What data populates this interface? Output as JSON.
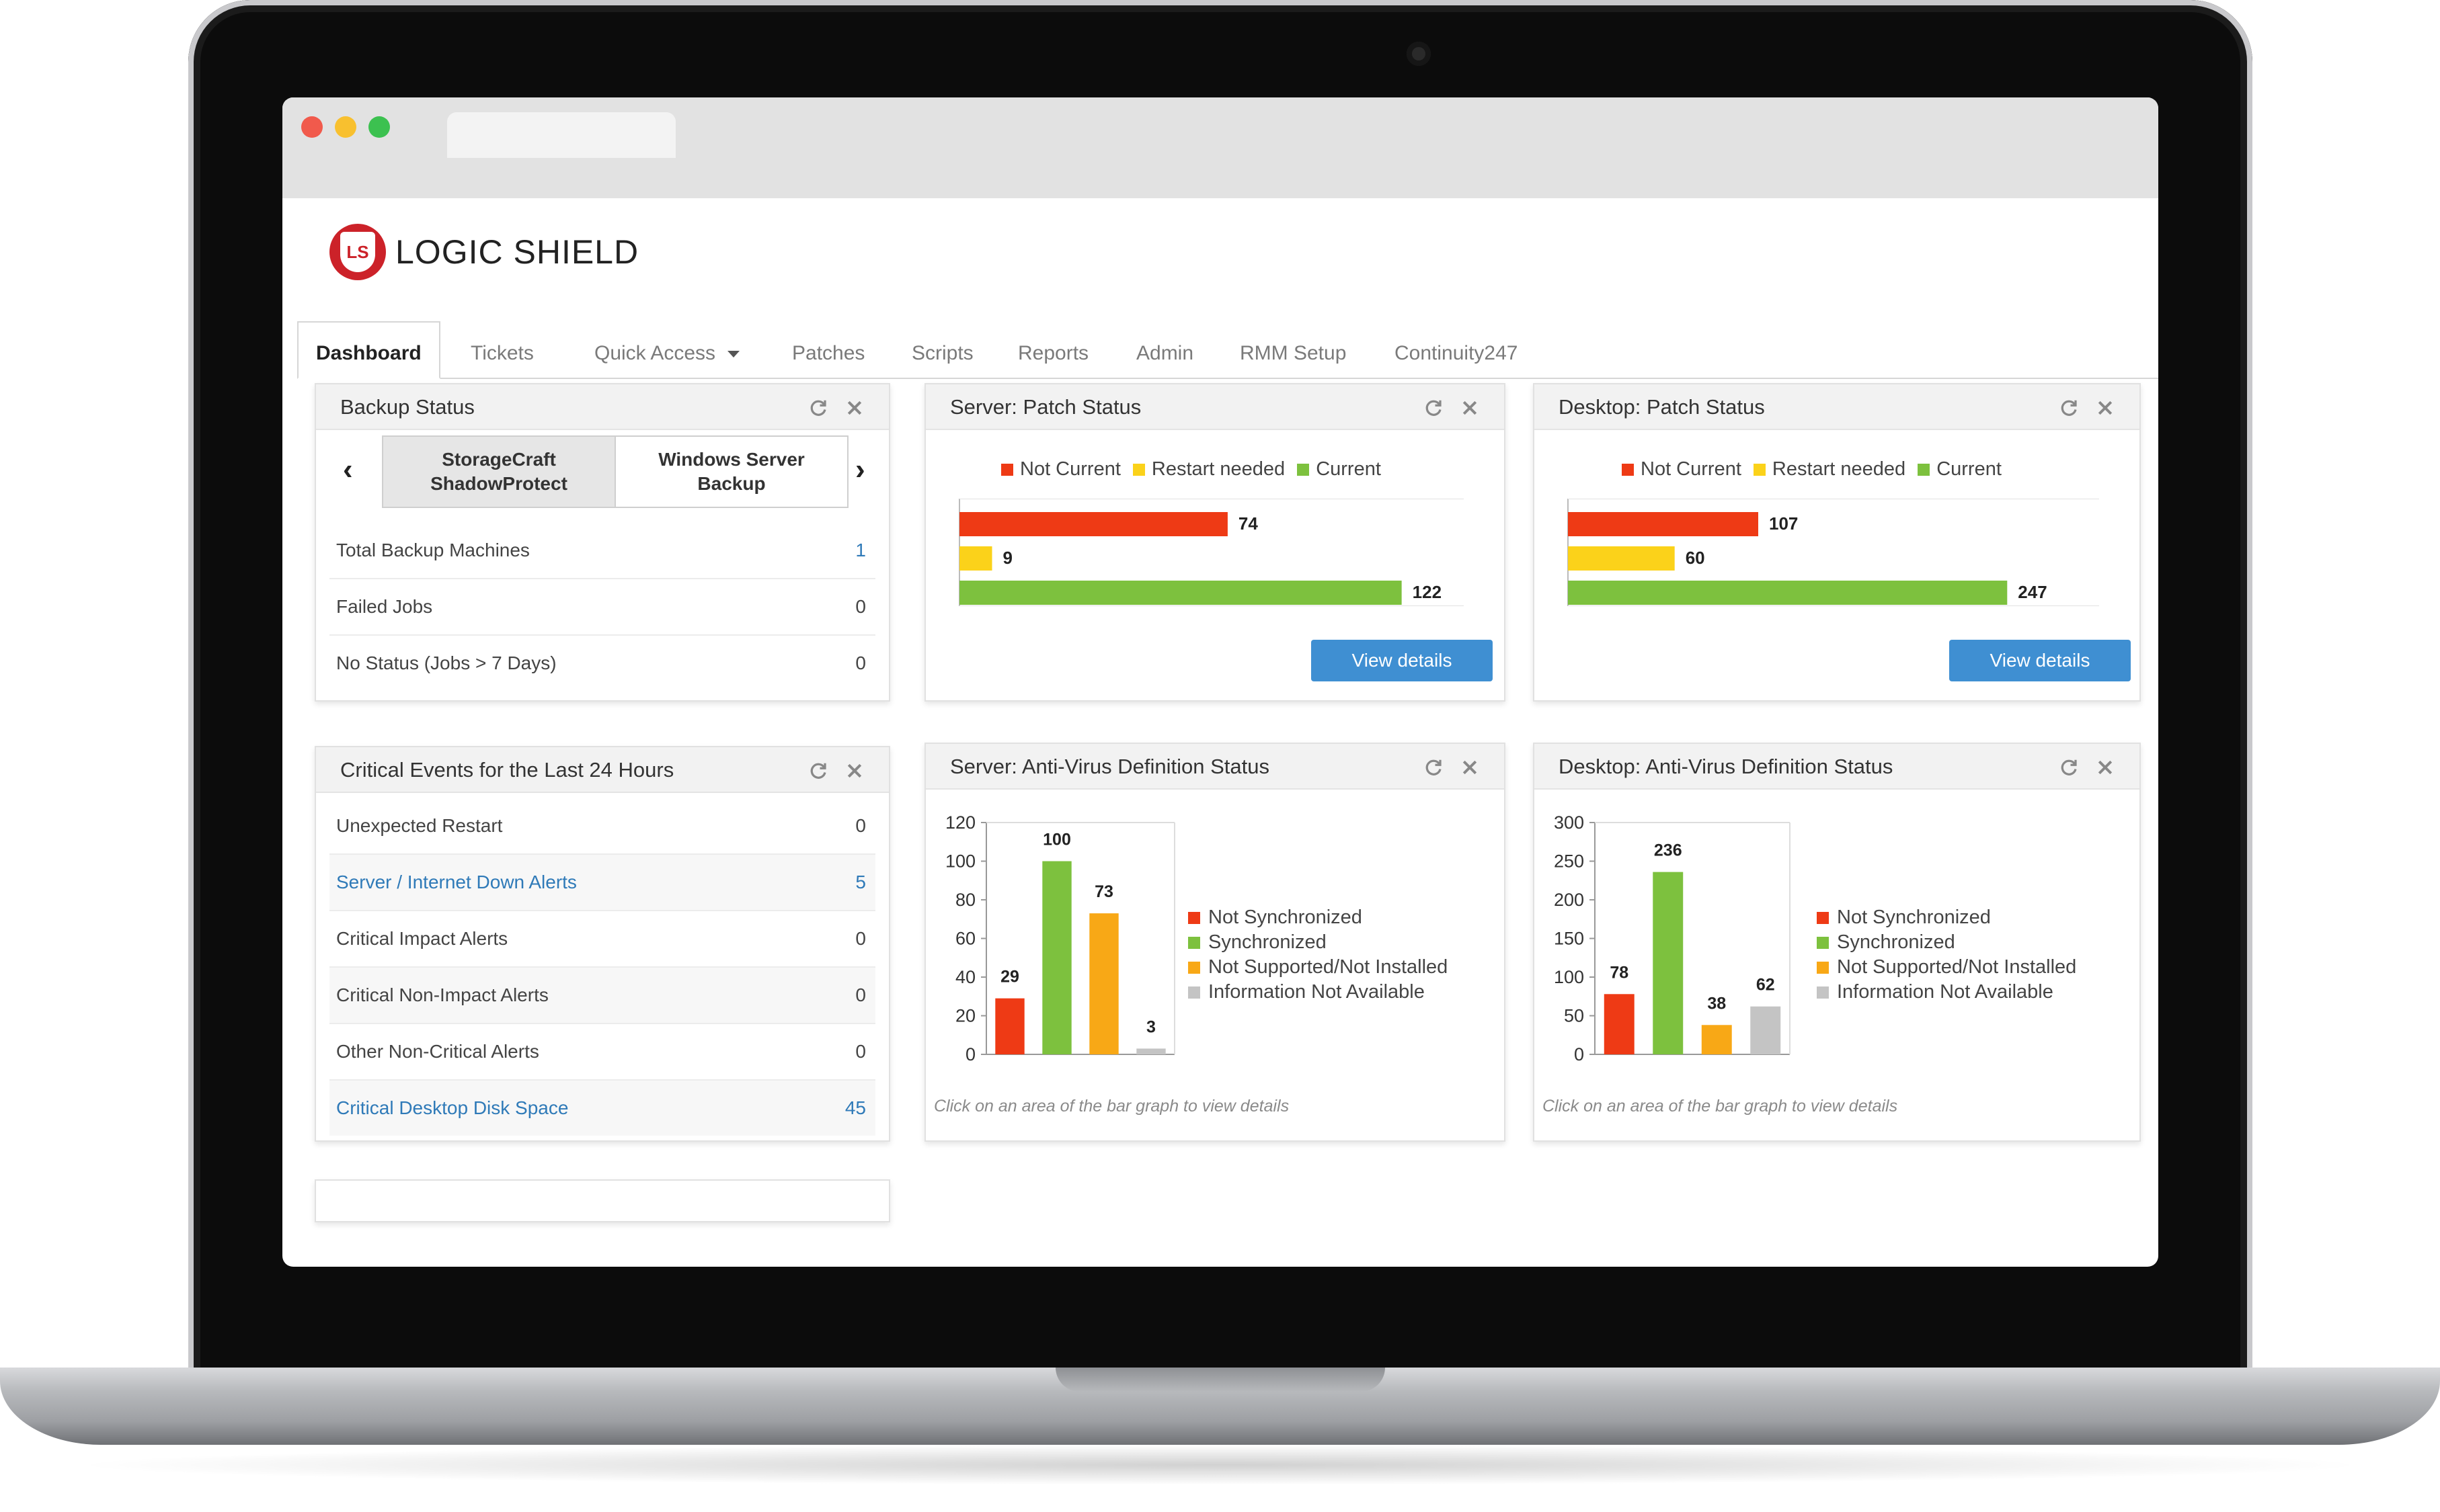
{
  "app": {
    "logo_text": "LOGIC SHIELD",
    "logo_mark": "LS"
  },
  "nav": {
    "tabs": [
      {
        "label": "Dashboard"
      },
      {
        "label": "Tickets"
      },
      {
        "label": "Quick Access"
      },
      {
        "label": "Patches"
      },
      {
        "label": "Scripts"
      },
      {
        "label": "Reports"
      },
      {
        "label": "Admin"
      },
      {
        "label": "RMM Setup"
      },
      {
        "label": "Continuity247"
      }
    ]
  },
  "backup": {
    "title": "Backup Status",
    "segments": [
      "StorageCraft\nShadowProtect",
      "Windows Server\nBackup"
    ],
    "rows": [
      {
        "label": "Total Backup Machines",
        "value": "1"
      },
      {
        "label": "Failed Jobs",
        "value": "0"
      },
      {
        "label": "No Status (Jobs > 7 Days)",
        "value": "0"
      }
    ]
  },
  "critical": {
    "title": "Critical Events for the Last 24 Hours",
    "rows": [
      {
        "label": "Unexpected Restart",
        "value": "0"
      },
      {
        "label": "Server / Internet Down Alerts",
        "value": "5"
      },
      {
        "label": "Critical Impact Alerts",
        "value": "0"
      },
      {
        "label": "Critical Non-Impact Alerts",
        "value": "0"
      },
      {
        "label": "Other Non-Critical Alerts",
        "value": "0"
      },
      {
        "label": "Critical Desktop Disk Space",
        "value": "45"
      }
    ]
  },
  "server_patch": {
    "title": "Server: Patch Status",
    "button": "View details"
  },
  "desktop_patch": {
    "title": "Desktop: Patch Status",
    "button": "View details"
  },
  "server_av": {
    "title": "Server: Anti-Virus Definition Status",
    "hint": "Click on an area of the bar graph to view details"
  },
  "desktop_av": {
    "title": "Desktop: Anti-Virus Definition Status",
    "hint": "Click on an area of the bar graph to view details"
  },
  "colors": {
    "red": "#ee3a15",
    "yellow": "#fbd21a",
    "green": "#7dc13e",
    "orange": "#f8a816",
    "gray": "#c4c4c4",
    "blue": "#3f8fd2",
    "brand": "#cc2229"
  },
  "icons": [
    "refresh-icon",
    "close-icon",
    "chevron-left-icon",
    "chevron-right-icon",
    "caret-down-icon"
  ],
  "chart_data": [
    {
      "type": "bar",
      "orientation": "horizontal",
      "categories": [
        "Not Current",
        "Restart needed",
        "Current"
      ],
      "values": [
        74,
        9,
        122
      ],
      "legend": [
        "Not Current",
        "Restart needed",
        "Current"
      ],
      "legend_position": "top"
    },
    {
      "type": "bar",
      "orientation": "horizontal",
      "categories": [
        "Not Current",
        "Restart needed",
        "Current"
      ],
      "values": [
        107,
        60,
        247
      ],
      "legend": [
        "Not Current",
        "Restart needed",
        "Current"
      ],
      "legend_position": "top"
    },
    {
      "type": "bar",
      "categories": [
        "Not Synchronized",
        "Synchronized",
        "Not Supported/Not Installed",
        "Information Not Available"
      ],
      "values": [
        29,
        100,
        73,
        3
      ],
      "ylim": [
        0,
        120
      ],
      "yticks": [
        "0",
        "20",
        "40",
        "60",
        "80",
        "100",
        "120"
      ],
      "legend": [
        "Not Synchronized",
        "Synchronized",
        "Not Supported/Not Installed",
        "Information Not Available"
      ],
      "legend_position": "right"
    },
    {
      "type": "bar",
      "categories": [
        "Not Synchronized",
        "Synchronized",
        "Not Supported/Not Installed",
        "Information Not Available"
      ],
      "values": [
        78,
        236,
        38,
        62
      ],
      "ylim": [
        0,
        300
      ],
      "yticks": [
        "0",
        "50",
        "100",
        "150",
        "200",
        "250",
        "300"
      ],
      "legend": [
        "Not Synchronized",
        "Synchronized",
        "Not Supported/Not Installed",
        "Information Not Available"
      ],
      "legend_position": "right"
    }
  ]
}
